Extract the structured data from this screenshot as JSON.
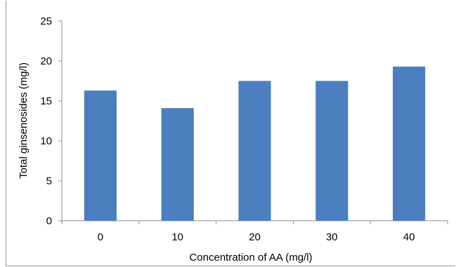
{
  "chart_data": {
    "type": "bar",
    "title": "",
    "xlabel": "Concentration of AA (mg/l)",
    "ylabel": "Total ginsenosides (mg/l)",
    "categories": [
      "0",
      "10",
      "20",
      "30",
      "40"
    ],
    "values": [
      16.3,
      14.1,
      17.5,
      17.5,
      19.3
    ],
    "ylim": [
      0,
      25
    ],
    "yticks": [
      "0",
      "5",
      "10",
      "15",
      "20",
      "25"
    ],
    "grid": false,
    "legend": "none",
    "bar_color": "#4a7ebf"
  }
}
